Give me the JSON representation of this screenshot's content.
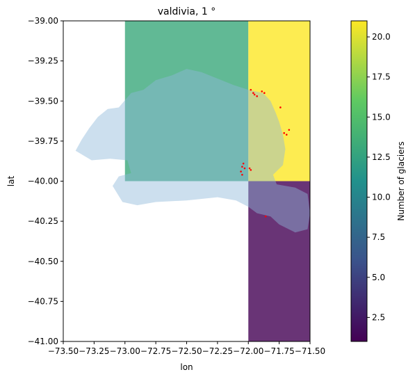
{
  "chart_data": {
    "type": "heatmap",
    "title": "valdivia, 1 °",
    "xlabel": "lon",
    "ylabel": "lat",
    "xlim": [
      -73.5,
      -71.5
    ],
    "ylim": [
      -41.0,
      -39.0
    ],
    "xticks": [
      -73.5,
      -73.25,
      -73.0,
      -72.75,
      -72.5,
      -72.25,
      -72.0,
      -71.75,
      -71.5
    ],
    "xtick_labels": [
      "−73.50",
      "−73.25",
      "−73.00",
      "−72.75",
      "−72.50",
      "−72.25",
      "−72.00",
      "−71.75",
      "−71.50"
    ],
    "yticks": [
      -39.0,
      -39.25,
      -39.5,
      -39.75,
      -40.0,
      -40.25,
      -40.5,
      -40.75,
      -41.0
    ],
    "ytick_labels": [
      "−39.00",
      "−39.25",
      "−39.50",
      "−39.75",
      "−40.00",
      "−40.25",
      "−40.50",
      "−40.75",
      "−41.00"
    ],
    "cells": [
      {
        "lon_min": -73.0,
        "lon_max": -72.0,
        "lat_min": -40.0,
        "lat_max": -39.0,
        "value": 13
      },
      {
        "lon_min": -72.0,
        "lon_max": -71.0,
        "lat_min": -40.0,
        "lat_max": -39.0,
        "value": 21
      },
      {
        "lon_min": -72.0,
        "lon_max": -71.0,
        "lat_min": -41.0,
        "lat_max": -40.0,
        "value": 1
      }
    ],
    "basin": {
      "name": "basin",
      "color": "#8fb9da",
      "outline_lonlat": [
        [
          -73.4,
          -39.81
        ],
        [
          -73.35,
          -39.74
        ],
        [
          -73.29,
          -39.67
        ],
        [
          -73.22,
          -39.6
        ],
        [
          -73.14,
          -39.55
        ],
        [
          -73.05,
          -39.54
        ],
        [
          -72.95,
          -39.45
        ],
        [
          -72.85,
          -39.43
        ],
        [
          -72.75,
          -39.37
        ],
        [
          -72.62,
          -39.34
        ],
        [
          -72.5,
          -39.3
        ],
        [
          -72.38,
          -39.32
        ],
        [
          -72.25,
          -39.36
        ],
        [
          -72.12,
          -39.4
        ],
        [
          -72.0,
          -39.43
        ],
        [
          -71.88,
          -39.45
        ],
        [
          -71.82,
          -39.5
        ],
        [
          -71.78,
          -39.57
        ],
        [
          -71.75,
          -39.63
        ],
        [
          -71.72,
          -39.71
        ],
        [
          -71.7,
          -39.8
        ],
        [
          -71.72,
          -39.9
        ],
        [
          -71.8,
          -39.96
        ],
        [
          -71.77,
          -40.02
        ],
        [
          -71.62,
          -40.04
        ],
        [
          -71.52,
          -40.08
        ],
        [
          -71.5,
          -40.2
        ],
        [
          -71.52,
          -40.3
        ],
        [
          -71.62,
          -40.32
        ],
        [
          -71.75,
          -40.27
        ],
        [
          -71.82,
          -40.22
        ],
        [
          -71.93,
          -40.2
        ],
        [
          -72.0,
          -40.16
        ],
        [
          -72.1,
          -40.12
        ],
        [
          -72.25,
          -40.1
        ],
        [
          -72.5,
          -40.12
        ],
        [
          -72.75,
          -40.13
        ],
        [
          -72.9,
          -40.15
        ],
        [
          -73.02,
          -40.13
        ],
        [
          -73.1,
          -40.03
        ],
        [
          -73.05,
          -39.97
        ],
        [
          -72.95,
          -39.95
        ],
        [
          -72.98,
          -39.87
        ],
        [
          -73.12,
          -39.86
        ],
        [
          -73.27,
          -39.87
        ],
        [
          -73.4,
          -39.81
        ]
      ]
    },
    "glaciers": {
      "color": "#ff0000",
      "points": [
        [
          -71.98,
          -39.43
        ],
        [
          -71.96,
          -39.45
        ],
        [
          -71.95,
          -39.46
        ],
        [
          -71.93,
          -39.47
        ],
        [
          -71.89,
          -39.44
        ],
        [
          -71.87,
          -39.45
        ],
        [
          -71.74,
          -39.54
        ],
        [
          -71.71,
          -39.7
        ],
        [
          -71.69,
          -39.71
        ],
        [
          -71.67,
          -39.68
        ],
        [
          -72.05,
          -39.91
        ],
        [
          -72.04,
          -39.89
        ],
        [
          -72.03,
          -39.92
        ],
        [
          -72.06,
          -39.94
        ],
        [
          -72.05,
          -39.96
        ],
        [
          -71.99,
          -39.92
        ],
        [
          -71.98,
          -39.93
        ],
        [
          -71.86,
          -40.22
        ]
      ]
    },
    "colorbar": {
      "label": "Number of glaciers",
      "min": 1,
      "max": 21,
      "ticks": [
        2.5,
        5.0,
        7.5,
        10.0,
        12.5,
        15.0,
        17.5,
        20.0
      ],
      "tick_labels": [
        "2.5",
        "5.0",
        "7.5",
        "10.0",
        "12.5",
        "15.0",
        "17.5",
        "20.0"
      ],
      "colormap_stops": [
        "#440154",
        "#3b528b",
        "#21918c",
        "#5ec962",
        "#fde725"
      ]
    }
  }
}
